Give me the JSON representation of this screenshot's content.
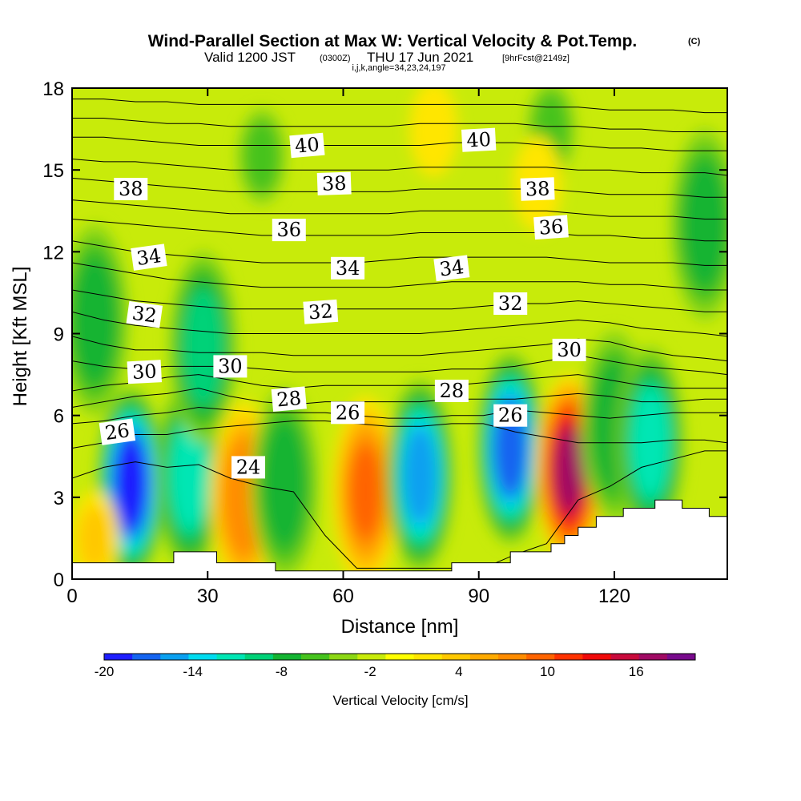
{
  "chart_data": {
    "type": "heatmap",
    "title_main": "Wind-Parallel Section at Max W: Vertical Velocity & Pot.Temp.",
    "title_mark": "(C)",
    "subtitle_valid": "Valid 1200 JST",
    "subtitle_z": "(0300Z)",
    "subtitle_date": "THU 17 Jun 2021",
    "subtitle_fcst": "[9hrFcst@2149z]",
    "subtitle_params": "i,j,k,angle=34,23,24,197",
    "xlabel": "Distance [nm]",
    "ylabel": "Height [Kft MSL]",
    "xlim": [
      0,
      145
    ],
    "ylim": [
      0,
      18
    ],
    "x_ticks": [
      "0",
      "30",
      "60",
      "90",
      "120"
    ],
    "x_tick_values": [
      0,
      30,
      60,
      90,
      120
    ],
    "y_ticks": [
      "0",
      "3",
      "6",
      "9",
      "12",
      "15",
      "18"
    ],
    "y_tick_values": [
      0,
      3,
      6,
      9,
      12,
      15,
      18
    ],
    "colorbar": {
      "label": "Vertical Velocity [cm/s]",
      "min": -20,
      "max": 20,
      "step": 2,
      "tick_labels": [
        "-20",
        "-14",
        "-8",
        "-2",
        "4",
        "10",
        "16"
      ],
      "tick_values": [
        -20,
        -14,
        -8,
        -2,
        4,
        10,
        16
      ],
      "colors": [
        "#1e1eff",
        "#1464f0",
        "#0aa0f0",
        "#00dcf0",
        "#00e6b4",
        "#00d278",
        "#14b432",
        "#46c31e",
        "#8cd714",
        "#c8eb0a",
        "#ffff00",
        "#ffe600",
        "#ffc800",
        "#ffaa00",
        "#ff8c00",
        "#ff6400",
        "#ff3200",
        "#f00a0a",
        "#c80a3c",
        "#a00a64",
        "#780a8c"
      ]
    },
    "updrafts_downdrafts": [
      {
        "x": 13,
        "y": 3.5,
        "w_cm_s": -19
      },
      {
        "x": 26,
        "y": 3.8,
        "w_cm_s": -12
      },
      {
        "x": 29,
        "y": 8.5,
        "w_cm_s": -9
      },
      {
        "x": 38,
        "y": 3.0,
        "w_cm_s": 9
      },
      {
        "x": 47,
        "y": 3.5,
        "w_cm_s": -8
      },
      {
        "x": 65,
        "y": 3.2,
        "w_cm_s": 10
      },
      {
        "x": 77,
        "y": 3.8,
        "w_cm_s": -15
      },
      {
        "x": 97,
        "y": 4.8,
        "w_cm_s": -17
      },
      {
        "x": 110,
        "y": 4.0,
        "w_cm_s": 18
      },
      {
        "x": 120,
        "y": 5.6,
        "w_cm_s": -8
      },
      {
        "x": 128,
        "y": 5.0,
        "w_cm_s": -12
      },
      {
        "x": 140,
        "y": 13.0,
        "w_cm_s": -8
      },
      {
        "x": 5,
        "y": 9.5,
        "w_cm_s": -8
      },
      {
        "x": 42,
        "y": 15.5,
        "w_cm_s": -6
      },
      {
        "x": 106,
        "y": 16.5,
        "w_cm_s": -6
      },
      {
        "x": 103,
        "y": 14.5,
        "w_cm_s": 3
      },
      {
        "x": 80,
        "y": 16.5,
        "w_cm_s": 2
      },
      {
        "x": 5,
        "y": 1.5,
        "w_cm_s": 4
      }
    ],
    "isentropes_label": "Pot.Temp.",
    "isentrope_labels": [
      {
        "text": "40",
        "x": 52,
        "y": 15.9,
        "rot": -5
      },
      {
        "text": "40",
        "x": 90,
        "y": 16.1,
        "rot": -3
      },
      {
        "text": "38",
        "x": 13,
        "y": 14.3,
        "rot": 0
      },
      {
        "text": "38",
        "x": 58,
        "y": 14.5,
        "rot": -2
      },
      {
        "text": "38",
        "x": 103,
        "y": 14.3,
        "rot": -2
      },
      {
        "text": "36",
        "x": 48,
        "y": 12.8,
        "rot": 0
      },
      {
        "text": "36",
        "x": 106,
        "y": 12.9,
        "rot": -4
      },
      {
        "text": "34",
        "x": 17,
        "y": 11.8,
        "rot": -8
      },
      {
        "text": "34",
        "x": 61,
        "y": 11.4,
        "rot": 0
      },
      {
        "text": "34",
        "x": 84,
        "y": 11.4,
        "rot": -7
      },
      {
        "text": "32",
        "x": 16,
        "y": 9.7,
        "rot": 8
      },
      {
        "text": "32",
        "x": 55,
        "y": 9.8,
        "rot": -4
      },
      {
        "text": "32",
        "x": 97,
        "y": 10.1,
        "rot": 0
      },
      {
        "text": "30",
        "x": 16,
        "y": 7.6,
        "rot": -3
      },
      {
        "text": "30",
        "x": 35,
        "y": 7.8,
        "rot": 0
      },
      {
        "text": "30",
        "x": 110,
        "y": 8.4,
        "rot": 0
      },
      {
        "text": "28",
        "x": 48,
        "y": 6.6,
        "rot": -5
      },
      {
        "text": "28",
        "x": 84,
        "y": 6.9,
        "rot": 0
      },
      {
        "text": "26",
        "x": 10,
        "y": 5.4,
        "rot": -8
      },
      {
        "text": "26",
        "x": 61,
        "y": 6.1,
        "rot": 0
      },
      {
        "text": "26",
        "x": 97,
        "y": 6.0,
        "rot": 0
      },
      {
        "text": "24",
        "x": 39,
        "y": 4.1,
        "rot": 0
      }
    ],
    "isentrope_levels": [
      {
        "theta": 24,
        "y": [
          3.7,
          4.1,
          4.3,
          4.1,
          4.2,
          3.7,
          3.4,
          3.2,
          1.6,
          0.4,
          0.4,
          0.4,
          0.4,
          0.4,
          0.9,
          1.3,
          2.9,
          3.4,
          4.1,
          4.4,
          4.7,
          4.7
        ]
      },
      {
        "theta": 26,
        "y": [
          4.8,
          5.0,
          5.3,
          5.3,
          5.5,
          5.6,
          5.7,
          5.8,
          5.8,
          5.7,
          5.6,
          5.6,
          5.7,
          5.7,
          5.4,
          5.2,
          5.0,
          5.0,
          5.0,
          5.1,
          5.1,
          5.0
        ]
      },
      {
        "theta": 27,
        "y": [
          5.7,
          5.8,
          6.0,
          6.1,
          6.3,
          6.2,
          6.1,
          6.1,
          6.1,
          6.0,
          5.9,
          5.9,
          6.0,
          6.0,
          6.2,
          6.1,
          6.0,
          5.9,
          6.0,
          6.1,
          6.1,
          6.1
        ]
      },
      {
        "theta": 28,
        "y": [
          6.3,
          6.5,
          6.7,
          6.8,
          7.0,
          6.7,
          6.5,
          6.4,
          6.5,
          6.5,
          6.5,
          6.5,
          6.6,
          6.6,
          6.6,
          6.7,
          6.8,
          6.7,
          6.5,
          6.5,
          6.6,
          6.6
        ]
      },
      {
        "theta": 29,
        "y": [
          6.9,
          7.1,
          7.2,
          7.4,
          7.5,
          7.3,
          7.1,
          7.0,
          7.1,
          7.1,
          7.1,
          7.1,
          7.1,
          7.2,
          7.3,
          7.4,
          7.5,
          7.3,
          7.1,
          7.0,
          7.0,
          7.0
        ]
      },
      {
        "theta": 30,
        "y": [
          8.0,
          7.8,
          7.7,
          7.8,
          7.8,
          7.8,
          7.7,
          7.6,
          7.6,
          7.6,
          7.6,
          7.6,
          7.7,
          7.7,
          7.8,
          8.0,
          8.2,
          8.0,
          7.8,
          7.7,
          7.6,
          7.5
        ]
      },
      {
        "theta": 31,
        "y": [
          8.9,
          8.6,
          8.4,
          8.4,
          8.3,
          8.3,
          8.3,
          8.2,
          8.2,
          8.2,
          8.2,
          8.2,
          8.3,
          8.4,
          8.5,
          8.6,
          8.8,
          8.7,
          8.4,
          8.2,
          8.1,
          8.0
        ]
      },
      {
        "theta": 32,
        "y": [
          9.8,
          9.5,
          9.3,
          9.2,
          9.1,
          9.0,
          9.0,
          9.0,
          9.0,
          9.0,
          9.0,
          9.0,
          9.1,
          9.2,
          9.3,
          9.4,
          9.5,
          9.4,
          9.2,
          9.1,
          9.0,
          8.9
        ]
      },
      {
        "theta": 33,
        "y": [
          10.6,
          10.4,
          10.2,
          10.1,
          10.0,
          9.9,
          9.9,
          9.9,
          9.9,
          9.9,
          9.9,
          9.9,
          9.9,
          10.0,
          10.1,
          10.1,
          10.2,
          10.1,
          10.0,
          9.9,
          9.8,
          9.8
        ]
      },
      {
        "theta": 34,
        "y": [
          11.6,
          11.4,
          11.2,
          11.0,
          10.9,
          10.8,
          10.7,
          10.7,
          10.7,
          10.7,
          10.7,
          10.8,
          10.9,
          10.9,
          10.9,
          10.9,
          10.9,
          10.8,
          10.8,
          10.7,
          10.6,
          10.6
        ]
      },
      {
        "theta": 35,
        "y": [
          12.4,
          12.2,
          12.0,
          11.9,
          11.8,
          11.7,
          11.6,
          11.6,
          11.6,
          11.6,
          11.7,
          11.8,
          11.8,
          11.8,
          11.8,
          11.8,
          11.7,
          11.6,
          11.6,
          11.6,
          11.5,
          11.5
        ]
      },
      {
        "theta": 36,
        "y": [
          13.2,
          13.1,
          13.0,
          12.9,
          12.8,
          12.7,
          12.6,
          12.6,
          12.6,
          12.6,
          12.6,
          12.7,
          12.7,
          12.7,
          12.7,
          12.7,
          12.6,
          12.6,
          12.5,
          12.5,
          12.4,
          12.4
        ]
      },
      {
        "theta": 37,
        "y": [
          13.9,
          13.8,
          13.7,
          13.6,
          13.5,
          13.4,
          13.4,
          13.4,
          13.4,
          13.4,
          13.4,
          13.5,
          13.5,
          13.5,
          13.5,
          13.5,
          13.4,
          13.3,
          13.3,
          13.3,
          13.2,
          13.2
        ]
      },
      {
        "theta": 38,
        "y": [
          14.7,
          14.6,
          14.5,
          14.4,
          14.3,
          14.2,
          14.2,
          14.2,
          14.2,
          14.2,
          14.2,
          14.3,
          14.3,
          14.3,
          14.3,
          14.3,
          14.2,
          14.1,
          14.1,
          14.1,
          14.0,
          14.0
        ]
      },
      {
        "theta": 39,
        "y": [
          15.4,
          15.3,
          15.3,
          15.2,
          15.1,
          15.0,
          15.0,
          15.0,
          15.0,
          15.0,
          15.0,
          15.1,
          15.1,
          15.1,
          15.1,
          15.1,
          15.0,
          15.0,
          14.9,
          14.9,
          14.9,
          14.8
        ]
      },
      {
        "theta": 40,
        "y": [
          16.2,
          16.2,
          16.1,
          16.0,
          15.9,
          15.9,
          15.9,
          15.9,
          15.9,
          15.9,
          15.9,
          15.9,
          16.0,
          16.0,
          16.0,
          15.9,
          15.9,
          15.8,
          15.8,
          15.7,
          15.7,
          15.7
        ]
      },
      {
        "theta": 41,
        "y": [
          16.9,
          16.9,
          16.8,
          16.7,
          16.7,
          16.6,
          16.6,
          16.6,
          16.6,
          16.6,
          16.6,
          16.7,
          16.7,
          16.7,
          16.7,
          16.6,
          16.6,
          16.5,
          16.5,
          16.4,
          16.4,
          16.4
        ]
      },
      {
        "theta": 42,
        "y": [
          17.6,
          17.6,
          17.5,
          17.5,
          17.4,
          17.4,
          17.4,
          17.4,
          17.4,
          17.4,
          17.4,
          17.4,
          17.4,
          17.4,
          17.4,
          17.3,
          17.3,
          17.2,
          17.2,
          17.2,
          17.1,
          17.1
        ]
      }
    ],
    "isentrope_x": [
      0,
      7,
      14,
      21,
      28,
      35,
      42,
      49,
      56,
      63,
      70,
      77,
      84,
      91,
      98,
      105,
      112,
      119,
      126,
      133,
      140,
      145
    ],
    "terrain": [
      [
        0,
        0.6
      ],
      [
        22.5,
        0.6
      ],
      [
        22.5,
        1.0
      ],
      [
        32,
        1.0
      ],
      [
        32,
        0.6
      ],
      [
        45,
        0.6
      ],
      [
        45,
        0.3
      ],
      [
        84,
        0.3
      ],
      [
        84,
        0.6
      ],
      [
        97,
        0.6
      ],
      [
        97,
        1.0
      ],
      [
        106,
        1.0
      ],
      [
        106,
        1.3
      ],
      [
        109,
        1.3
      ],
      [
        109,
        1.6
      ],
      [
        112,
        1.6
      ],
      [
        112,
        1.9
      ],
      [
        116,
        1.9
      ],
      [
        116,
        2.3
      ],
      [
        122,
        2.3
      ],
      [
        122,
        2.6
      ],
      [
        129,
        2.6
      ],
      [
        129,
        2.9
      ],
      [
        135,
        2.9
      ],
      [
        135,
        2.6
      ],
      [
        141,
        2.6
      ],
      [
        141,
        2.3
      ],
      [
        145,
        2.3
      ]
    ]
  }
}
